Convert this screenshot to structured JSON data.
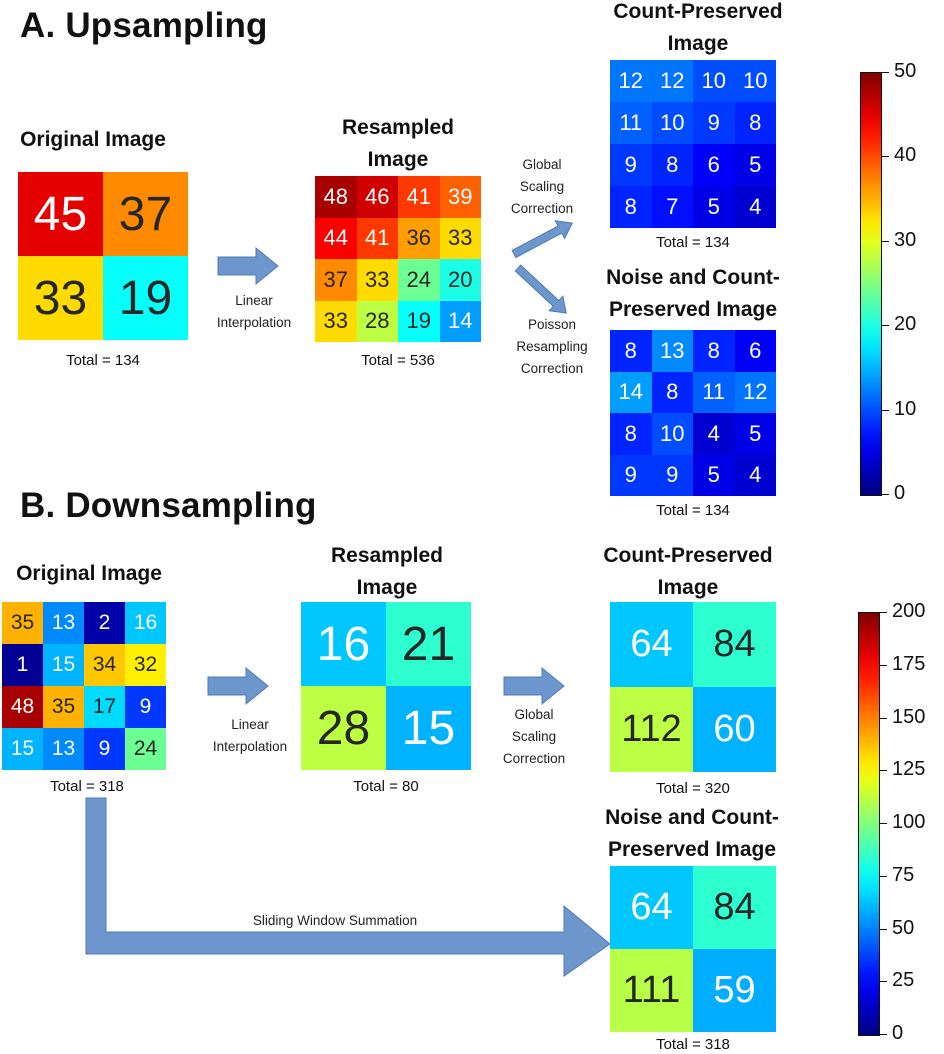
{
  "sectionA": {
    "title": "A. Upsampling",
    "original": {
      "title": "Original Image",
      "total": "Total = 134",
      "values": [
        [
          45,
          37
        ],
        [
          33,
          19
        ]
      ]
    },
    "interp_label": "Linear\nInterpolation",
    "resampled": {
      "title": "Resampled\nImage",
      "total": "Total = 536",
      "values": [
        [
          48,
          46,
          41,
          39
        ],
        [
          44,
          41,
          36,
          33
        ],
        [
          37,
          33,
          24,
          20
        ],
        [
          33,
          28,
          19,
          14
        ]
      ]
    },
    "global_label": "Global\nScaling\nCorrection",
    "poisson_label": "Poisson\nResampling\nCorrection",
    "count_preserved": {
      "title": "Count-Preserved\nImage",
      "total": "Total = 134",
      "values": [
        [
          12,
          12,
          10,
          10
        ],
        [
          11,
          10,
          9,
          8
        ],
        [
          9,
          8,
          6,
          5
        ],
        [
          8,
          7,
          5,
          4
        ]
      ]
    },
    "noise_preserved": {
      "title": "Noise and Count-\nPreserved Image",
      "total": "Total = 134",
      "values": [
        [
          8,
          13,
          8,
          6
        ],
        [
          14,
          8,
          11,
          12
        ],
        [
          8,
          10,
          4,
          5
        ],
        [
          9,
          9,
          5,
          4
        ]
      ]
    },
    "colorbar": {
      "min": 0,
      "max": 50,
      "ticks": [
        "0",
        "10",
        "20",
        "30",
        "40",
        "50"
      ]
    }
  },
  "sectionB": {
    "title": "B. Downsampling",
    "original": {
      "title": "Original Image",
      "total": "Total = 318",
      "values": [
        [
          35,
          13,
          2,
          16
        ],
        [
          1,
          15,
          34,
          32
        ],
        [
          48,
          35,
          17,
          9
        ],
        [
          15,
          13,
          9,
          24
        ]
      ]
    },
    "interp_label": "Linear\nInterpolation",
    "resampled": {
      "title": "Resampled\nImage",
      "total": "Total = 80",
      "values": [
        [
          16,
          21
        ],
        [
          28,
          15
        ]
      ]
    },
    "global_label": "Global\nScaling\nCorrection",
    "count_preserved": {
      "title": "Count-Preserved\nImage",
      "total": "Total = 320",
      "values": [
        [
          64,
          84
        ],
        [
          112,
          60
        ]
      ]
    },
    "sliding_label": "Sliding Window Summation",
    "noise_preserved": {
      "title": "Noise and Count-\nPreserved Image",
      "total": "Total = 318",
      "values": [
        [
          64,
          84
        ],
        [
          111,
          59
        ]
      ]
    },
    "colorbar": {
      "min": 0,
      "max": 200,
      "ticks": [
        "0",
        "25",
        "50",
        "75",
        "100",
        "125",
        "150",
        "175",
        "200"
      ]
    }
  },
  "colors": {
    "arrow": "#6d96cc",
    "arrow_edge": "#4f7bb5"
  }
}
